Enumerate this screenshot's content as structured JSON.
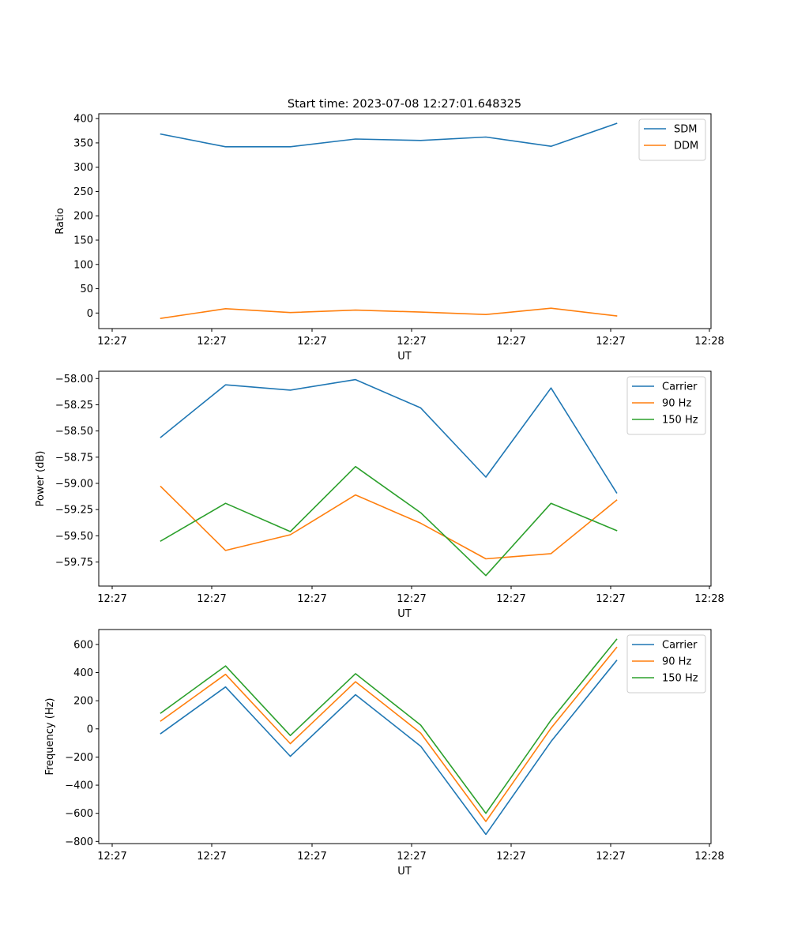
{
  "figure_title": "Start time: 2023-07-08 12:27:01.648325",
  "colors": {
    "c0": "#1f77b4",
    "c1": "#ff7f0e",
    "c2": "#2ca02c"
  },
  "chart_data": [
    {
      "type": "line",
      "title": "Start time: 2023-07-08 12:27:01.648325",
      "xlabel": "UT",
      "ylabel": "Ratio",
      "x_tick_labels": [
        "12:27",
        "12:27",
        "12:27",
        "12:27",
        "12:27",
        "12:27",
        "12:28"
      ],
      "y_ticks": [
        0,
        50,
        100,
        150,
        200,
        250,
        300,
        350,
        400
      ],
      "y_tick_labels": [
        "0",
        "50",
        "100",
        "150",
        "200",
        "250",
        "300",
        "350",
        "400"
      ],
      "ylim": [
        -32,
        410
      ],
      "legend_position": "top-right",
      "sample_count": 8,
      "series": [
        {
          "name": "SDM",
          "color_key": "c0",
          "values": [
            368,
            342,
            342,
            358,
            355,
            362,
            343,
            390
          ]
        },
        {
          "name": "DDM",
          "color_key": "c1",
          "values": [
            -11,
            9,
            1,
            6,
            2,
            -3,
            10,
            -6
          ]
        }
      ]
    },
    {
      "type": "line",
      "title": "",
      "xlabel": "UT",
      "ylabel": "Power (dB)",
      "x_tick_labels": [
        "12:27",
        "12:27",
        "12:27",
        "12:27",
        "12:27",
        "12:27",
        "12:28"
      ],
      "y_ticks": [
        -59.75,
        -59.5,
        -59.25,
        -59.0,
        -58.75,
        -58.5,
        -58.25,
        -58.0
      ],
      "y_tick_labels": [
        "−59.75",
        "−59.50",
        "−59.25",
        "−59.00",
        "−58.75",
        "−58.50",
        "−58.25",
        "−58.00"
      ],
      "ylim": [
        -59.98,
        -57.93
      ],
      "legend_position": "top-right",
      "sample_count": 8,
      "series": [
        {
          "name": "Carrier",
          "color_key": "c0",
          "values": [
            -58.56,
            -58.06,
            -58.11,
            -58.01,
            -58.28,
            -58.94,
            -58.09,
            -59.09
          ]
        },
        {
          "name": "90 Hz",
          "color_key": "c1",
          "values": [
            -59.03,
            -59.64,
            -59.49,
            -59.11,
            -59.38,
            -59.72,
            -59.67,
            -59.16
          ]
        },
        {
          "name": "150 Hz",
          "color_key": "c2",
          "values": [
            -59.55,
            -59.19,
            -59.46,
            -58.84,
            -59.28,
            -59.88,
            -59.19,
            -59.45
          ]
        }
      ]
    },
    {
      "type": "line",
      "title": "",
      "xlabel": "UT",
      "ylabel": "Frequency (Hz)",
      "x_tick_labels": [
        "12:27",
        "12:27",
        "12:27",
        "12:27",
        "12:27",
        "12:27",
        "12:28"
      ],
      "y_ticks": [
        -800,
        -600,
        -400,
        -200,
        0,
        200,
        400,
        600
      ],
      "y_tick_labels": [
        "−800",
        "−600",
        "−400",
        "−200",
        "0",
        "200",
        "400",
        "600"
      ],
      "ylim": [
        -815,
        706
      ],
      "legend_position": "top-right",
      "sample_count": 8,
      "series": [
        {
          "name": "Carrier",
          "color_key": "c0",
          "values": [
            -33,
            298,
            -195,
            243,
            -123,
            -750,
            -90,
            486
          ]
        },
        {
          "name": "90 Hz",
          "color_key": "c1",
          "values": [
            56,
            388,
            -105,
            335,
            -30,
            -658,
            5,
            578
          ]
        },
        {
          "name": "150 Hz",
          "color_key": "c2",
          "values": [
            112,
            447,
            -47,
            392,
            27,
            -600,
            62,
            636
          ]
        }
      ]
    }
  ]
}
